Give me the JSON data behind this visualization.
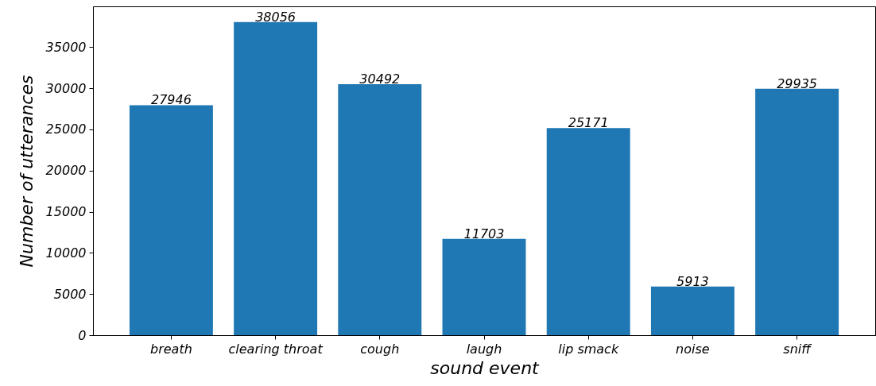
{
  "chart_data": {
    "type": "bar",
    "xlabel": "sound event",
    "ylabel": "Number of utterances",
    "categories": [
      "breath",
      "clearing throat",
      "cough",
      "laugh",
      "lip smack",
      "noise",
      "sniff"
    ],
    "values": [
      27946,
      38056,
      30492,
      11703,
      25171,
      5913,
      29935
    ],
    "color": "#1f77b4",
    "ylim": [
      0,
      39959
    ],
    "yticks": [
      0,
      5000,
      10000,
      15000,
      20000,
      25000,
      30000,
      35000
    ],
    "grid": false,
    "data_labels": true
  }
}
